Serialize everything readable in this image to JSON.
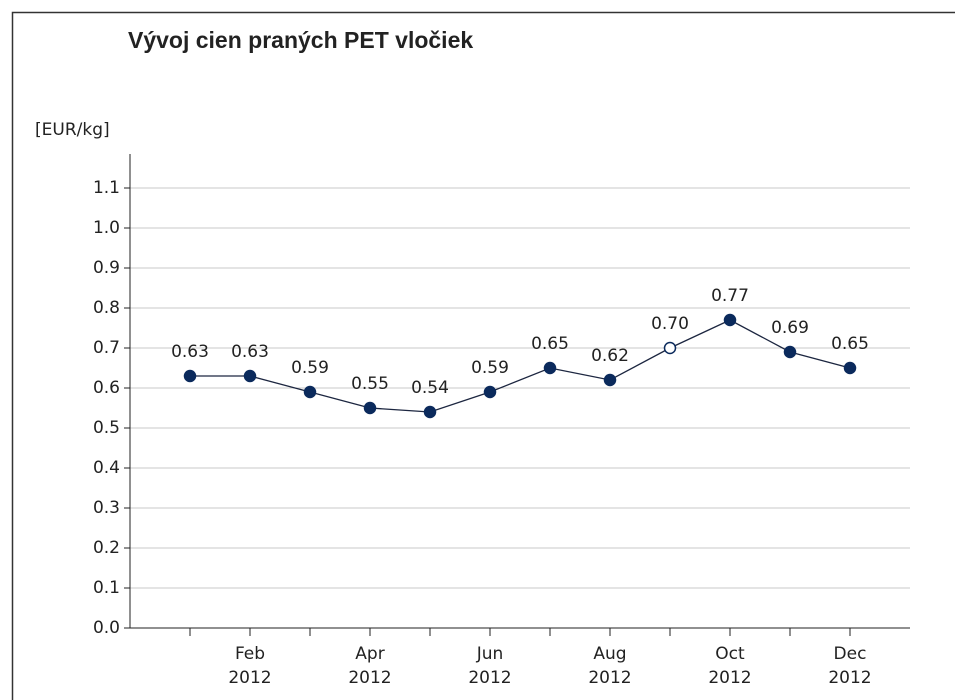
{
  "chart_data": {
    "type": "line",
    "title": "Vývoj cien praných PET vločiek",
    "y_label": "[EUR/kg]",
    "categories": [
      null,
      "Feb 2012",
      null,
      "Apr 2012",
      null,
      "Jun 2012",
      null,
      "Aug 2012",
      null,
      "Oct 2012",
      null,
      "Dec 2012"
    ],
    "series": [
      {
        "name": null,
        "color": "#0b2a5c",
        "values": [
          0.63,
          0.63,
          0.59,
          0.55,
          0.54,
          0.59,
          0.65,
          0.62,
          0.7,
          0.77,
          0.69,
          0.65
        ],
        "value_labels": [
          "0.63",
          "0.63",
          "0.59",
          "0.55",
          "0.54",
          "0.59",
          "0.65",
          "0.62",
          "0.70",
          "0.77",
          "0.69",
          "0.65"
        ]
      }
    ],
    "hollow_points": [
      8
    ],
    "ylim": [
      0,
      1.2
    ],
    "yticks": [
      {
        "value": 0,
        "label": "0.0"
      },
      0.1,
      0.2,
      0.3,
      0.4,
      0.5,
      0.6,
      0.7,
      0.8,
      0.9,
      {
        "value": 1,
        "label": "1.0"
      },
      1.1
    ],
    "grid": true
  }
}
